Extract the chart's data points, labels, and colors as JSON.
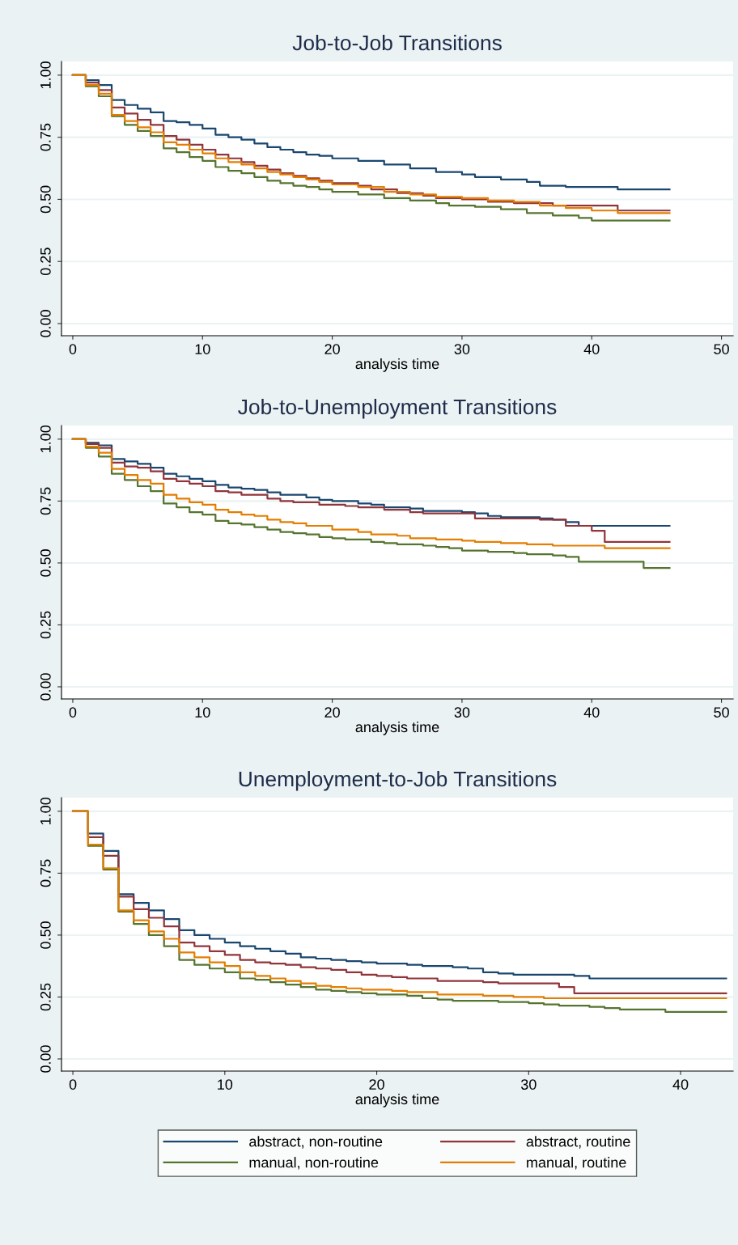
{
  "chart_data": [
    {
      "type": "step",
      "title": "Job-to-Job Transitions",
      "xlabel": "analysis time",
      "xlim": [
        -0.87,
        50.9
      ],
      "ylim": [
        -0.049,
        1.055
      ],
      "xticks": [
        0,
        10,
        20,
        30,
        40,
        50
      ],
      "yticks": [
        {
          "value": 0,
          "label": "0.00"
        },
        {
          "value": 0.25,
          "label": "0.25"
        },
        {
          "value": 0.5,
          "label": "0.50"
        },
        {
          "value": 0.75,
          "label": "0.75"
        },
        {
          "value": 1,
          "label": "1.00"
        }
      ],
      "grid": "y",
      "legend": false,
      "series": [
        {
          "color": "#1a476f",
          "x": [
            0,
            1,
            2,
            3,
            4,
            5,
            6,
            7,
            8,
            9,
            10,
            11,
            12,
            13,
            14,
            15,
            16,
            17,
            18,
            19,
            20,
            22,
            24,
            26,
            28,
            30,
            31,
            33,
            35,
            36,
            38,
            42,
            46
          ],
          "values": [
            1,
            0.98,
            0.96,
            0.9,
            0.88,
            0.865,
            0.85,
            0.815,
            0.81,
            0.8,
            0.785,
            0.76,
            0.75,
            0.74,
            0.725,
            0.71,
            0.7,
            0.69,
            0.68,
            0.675,
            0.665,
            0.655,
            0.64,
            0.625,
            0.61,
            0.6,
            0.59,
            0.58,
            0.57,
            0.555,
            0.55,
            0.54,
            0.54
          ]
        },
        {
          "color": "#90353b",
          "x": [
            0,
            1,
            2,
            3,
            4,
            5,
            6,
            7,
            8,
            9,
            10,
            11,
            12,
            13,
            14,
            15,
            16,
            17,
            18,
            19,
            20,
            22,
            23,
            25,
            27,
            28,
            30,
            32,
            34,
            37,
            42,
            46
          ],
          "values": [
            1,
            0.97,
            0.94,
            0.87,
            0.845,
            0.82,
            0.8,
            0.755,
            0.74,
            0.72,
            0.7,
            0.68,
            0.665,
            0.65,
            0.635,
            0.62,
            0.605,
            0.595,
            0.585,
            0.575,
            0.565,
            0.555,
            0.54,
            0.525,
            0.515,
            0.505,
            0.5,
            0.49,
            0.485,
            0.475,
            0.455,
            0.455
          ]
        },
        {
          "color": "#55752f",
          "x": [
            0,
            1,
            2,
            3,
            4,
            5,
            6,
            7,
            8,
            9,
            10,
            11,
            12,
            13,
            14,
            15,
            16,
            17,
            18,
            19,
            20,
            22,
            24,
            26,
            28,
            29,
            31,
            33,
            35,
            37,
            39,
            40,
            46
          ],
          "values": [
            1,
            0.955,
            0.915,
            0.835,
            0.8,
            0.775,
            0.755,
            0.705,
            0.69,
            0.67,
            0.655,
            0.63,
            0.615,
            0.605,
            0.59,
            0.575,
            0.565,
            0.555,
            0.55,
            0.54,
            0.53,
            0.52,
            0.505,
            0.495,
            0.485,
            0.475,
            0.47,
            0.46,
            0.445,
            0.435,
            0.425,
            0.415,
            0.415
          ]
        },
        {
          "color": "#e37e00",
          "x": [
            0,
            1,
            2,
            3,
            4,
            5,
            6,
            7,
            8,
            9,
            10,
            11,
            12,
            13,
            14,
            15,
            16,
            17,
            18,
            19,
            20,
            22,
            24,
            26,
            28,
            30,
            32,
            34,
            36,
            38,
            40,
            42,
            46
          ],
          "values": [
            1,
            0.96,
            0.925,
            0.84,
            0.815,
            0.79,
            0.77,
            0.73,
            0.72,
            0.7,
            0.685,
            0.665,
            0.65,
            0.64,
            0.625,
            0.61,
            0.6,
            0.59,
            0.58,
            0.57,
            0.56,
            0.55,
            0.53,
            0.52,
            0.51,
            0.505,
            0.495,
            0.49,
            0.475,
            0.465,
            0.455,
            0.445,
            0.445
          ]
        }
      ]
    },
    {
      "type": "step",
      "title": "Job-to-Unemployment Transitions",
      "xlabel": "analysis time",
      "xlim": [
        -0.87,
        50.9
      ],
      "ylim": [
        -0.049,
        1.055
      ],
      "xticks": [
        0,
        10,
        20,
        30,
        40,
        50
      ],
      "yticks": [
        {
          "value": 0,
          "label": "0.00"
        },
        {
          "value": 0.25,
          "label": "0.25"
        },
        {
          "value": 0.5,
          "label": "0.50"
        },
        {
          "value": 0.75,
          "label": "0.75"
        },
        {
          "value": 1,
          "label": "1.00"
        }
      ],
      "grid": "y",
      "legend": false,
      "series": [
        {
          "color": "#1a476f",
          "x": [
            0,
            1,
            2,
            3,
            4,
            5,
            6,
            7,
            8,
            9,
            10,
            11,
            12,
            13,
            14,
            15,
            16,
            18,
            19,
            20,
            22,
            23,
            24,
            26,
            27,
            30,
            31,
            32,
            33,
            36,
            37,
            38,
            39,
            46
          ],
          "values": [
            1,
            0.985,
            0.975,
            0.92,
            0.91,
            0.9,
            0.885,
            0.86,
            0.85,
            0.84,
            0.83,
            0.815,
            0.805,
            0.8,
            0.795,
            0.785,
            0.775,
            0.765,
            0.755,
            0.75,
            0.74,
            0.735,
            0.725,
            0.72,
            0.71,
            0.705,
            0.7,
            0.69,
            0.685,
            0.68,
            0.675,
            0.665,
            0.65,
            0.65
          ]
        },
        {
          "color": "#90353b",
          "x": [
            0,
            1,
            2,
            3,
            4,
            5,
            6,
            7,
            8,
            9,
            10,
            11,
            12,
            13,
            15,
            16,
            17,
            19,
            21,
            22,
            24,
            26,
            27,
            31,
            36,
            38,
            40,
            41,
            46
          ],
          "values": [
            1,
            0.98,
            0.965,
            0.905,
            0.89,
            0.885,
            0.87,
            0.84,
            0.83,
            0.82,
            0.81,
            0.79,
            0.785,
            0.775,
            0.76,
            0.75,
            0.745,
            0.735,
            0.73,
            0.725,
            0.715,
            0.705,
            0.7,
            0.68,
            0.675,
            0.65,
            0.63,
            0.585,
            0.585
          ]
        },
        {
          "color": "#55752f",
          "x": [
            0,
            1,
            2,
            3,
            4,
            5,
            6,
            7,
            8,
            9,
            10,
            11,
            12,
            13,
            14,
            15,
            16,
            17,
            18,
            19,
            20,
            21,
            23,
            24,
            25,
            27,
            28,
            29,
            30,
            32,
            34,
            35,
            37,
            38,
            39,
            44,
            46
          ],
          "values": [
            1,
            0.965,
            0.93,
            0.86,
            0.835,
            0.81,
            0.79,
            0.74,
            0.725,
            0.705,
            0.695,
            0.67,
            0.66,
            0.655,
            0.645,
            0.635,
            0.625,
            0.62,
            0.615,
            0.605,
            0.6,
            0.595,
            0.585,
            0.58,
            0.575,
            0.57,
            0.565,
            0.56,
            0.55,
            0.545,
            0.54,
            0.535,
            0.53,
            0.525,
            0.505,
            0.48,
            0.48
          ]
        },
        {
          "color": "#e37e00",
          "x": [
            0,
            1,
            2,
            3,
            4,
            5,
            6,
            7,
            8,
            9,
            10,
            11,
            12,
            13,
            14,
            15,
            16,
            17,
            18,
            20,
            22,
            23,
            25,
            26,
            28,
            30,
            31,
            33,
            35,
            37,
            41,
            46
          ],
          "values": [
            1,
            0.97,
            0.945,
            0.88,
            0.855,
            0.835,
            0.82,
            0.775,
            0.76,
            0.745,
            0.735,
            0.715,
            0.705,
            0.695,
            0.69,
            0.675,
            0.665,
            0.66,
            0.65,
            0.635,
            0.625,
            0.615,
            0.61,
            0.6,
            0.595,
            0.59,
            0.585,
            0.58,
            0.575,
            0.57,
            0.56,
            0.56
          ]
        }
      ]
    },
    {
      "type": "step",
      "title": "Unemployment-to-Job Transitions",
      "xlabel": "analysis time",
      "xlim": [
        -0.75,
        43.46
      ],
      "ylim": [
        -0.049,
        1.055
      ],
      "xticks": [
        0,
        10,
        20,
        30,
        40
      ],
      "yticks": [
        {
          "value": 0,
          "label": "0.00"
        },
        {
          "value": 0.25,
          "label": "0.25"
        },
        {
          "value": 0.5,
          "label": "0.50"
        },
        {
          "value": 0.75,
          "label": "0.75"
        },
        {
          "value": 1,
          "label": "1.00"
        }
      ],
      "grid": "y",
      "legend": "bottom",
      "series": [
        {
          "name": "abstract, non-routine",
          "color": "#1a476f",
          "x": [
            0,
            1,
            2,
            3,
            4,
            5,
            6,
            7,
            8,
            9,
            10,
            11,
            12,
            13,
            14,
            15,
            16,
            17,
            18,
            19,
            20,
            22,
            23,
            25,
            26,
            27,
            28,
            29,
            33,
            34,
            43
          ],
          "values": [
            1,
            0.91,
            0.84,
            0.665,
            0.63,
            0.6,
            0.565,
            0.52,
            0.5,
            0.485,
            0.47,
            0.455,
            0.445,
            0.435,
            0.425,
            0.41,
            0.405,
            0.4,
            0.395,
            0.39,
            0.385,
            0.38,
            0.375,
            0.37,
            0.365,
            0.35,
            0.345,
            0.34,
            0.335,
            0.325,
            0.325
          ]
        },
        {
          "name": "abstract, routine",
          "color": "#90353b",
          "x": [
            0,
            1,
            2,
            3,
            4,
            5,
            6,
            7,
            8,
            9,
            10,
            11,
            12,
            13,
            14,
            15,
            16,
            17,
            18,
            19,
            20,
            21,
            22,
            24,
            27,
            28,
            32,
            33,
            43
          ],
          "values": [
            1,
            0.895,
            0.82,
            0.655,
            0.605,
            0.57,
            0.535,
            0.47,
            0.455,
            0.435,
            0.42,
            0.4,
            0.39,
            0.385,
            0.38,
            0.37,
            0.365,
            0.36,
            0.35,
            0.34,
            0.335,
            0.33,
            0.325,
            0.315,
            0.31,
            0.305,
            0.29,
            0.265,
            0.265
          ]
        },
        {
          "name": "manual, non-routine",
          "color": "#55752f",
          "x": [
            0,
            1,
            2,
            3,
            4,
            5,
            6,
            7,
            8,
            9,
            10,
            11,
            12,
            13,
            14,
            15,
            16,
            17,
            18,
            19,
            20,
            22,
            23,
            24,
            25,
            28,
            30,
            31,
            32,
            34,
            35,
            36,
            39,
            43
          ],
          "values": [
            1,
            0.86,
            0.765,
            0.595,
            0.545,
            0.5,
            0.455,
            0.4,
            0.38,
            0.365,
            0.35,
            0.325,
            0.32,
            0.31,
            0.3,
            0.29,
            0.28,
            0.275,
            0.27,
            0.265,
            0.26,
            0.255,
            0.245,
            0.24,
            0.235,
            0.23,
            0.225,
            0.22,
            0.215,
            0.21,
            0.205,
            0.2,
            0.19,
            0.19
          ]
        },
        {
          "name": "manual, routine",
          "color": "#e37e00",
          "x": [
            0,
            1,
            2,
            3,
            4,
            5,
            6,
            7,
            8,
            9,
            10,
            11,
            12,
            13,
            14,
            15,
            16,
            17,
            18,
            19,
            21,
            22,
            24,
            27,
            29,
            31,
            43
          ],
          "values": [
            1,
            0.865,
            0.77,
            0.6,
            0.56,
            0.515,
            0.485,
            0.43,
            0.41,
            0.39,
            0.375,
            0.35,
            0.335,
            0.325,
            0.315,
            0.305,
            0.295,
            0.29,
            0.285,
            0.28,
            0.275,
            0.27,
            0.26,
            0.255,
            0.25,
            0.245,
            0.245
          ]
        }
      ]
    }
  ]
}
